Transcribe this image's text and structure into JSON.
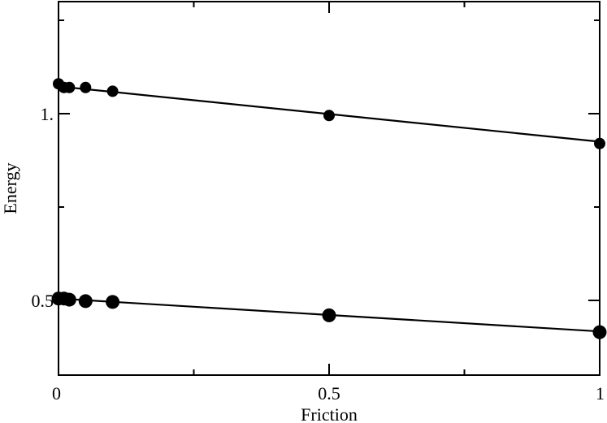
{
  "chart_data": {
    "type": "scatter",
    "xlabel": "Friction",
    "ylabel": "Energy",
    "xlim": [
      0,
      1
    ],
    "ylim": [
      0.3,
      1.3
    ],
    "grid": false,
    "x_ticks": [
      {
        "value": 0,
        "label": "0"
      },
      {
        "value": 0.5,
        "label": "0.5"
      },
      {
        "value": 1,
        "label": "1"
      }
    ],
    "y_ticks": [
      {
        "value": 0.5,
        "label": "0.5"
      },
      {
        "value": 1.0,
        "label": "1."
      }
    ],
    "series": [
      {
        "points": [
          {
            "x": 0.0,
            "y": 1.08
          },
          {
            "x": 0.01,
            "y": 1.07
          },
          {
            "x": 0.02,
            "y": 1.07
          },
          {
            "x": 0.05,
            "y": 1.07
          },
          {
            "x": 0.1,
            "y": 1.06
          },
          {
            "x": 0.5,
            "y": 0.995
          },
          {
            "x": 1.0,
            "y": 0.92
          }
        ],
        "fit_line": {
          "x": [
            0,
            1
          ],
          "y": [
            1.073,
            0.925
          ]
        },
        "marker_size": "small"
      },
      {
        "points": [
          {
            "x": 0.0,
            "y": 0.505
          },
          {
            "x": 0.01,
            "y": 0.505
          },
          {
            "x": 0.02,
            "y": 0.502
          },
          {
            "x": 0.05,
            "y": 0.498
          },
          {
            "x": 0.1,
            "y": 0.496
          },
          {
            "x": 0.5,
            "y": 0.46
          },
          {
            "x": 1.0,
            "y": 0.415
          }
        ],
        "fit_line": {
          "x": [
            0,
            1
          ],
          "y": [
            0.505,
            0.417
          ]
        },
        "marker_size": "large"
      }
    ]
  }
}
